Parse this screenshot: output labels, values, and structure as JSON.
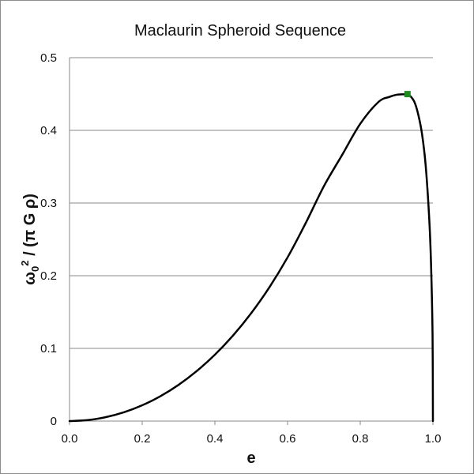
{
  "chart_data": {
    "type": "line",
    "title": "Maclaurin Spheroid Sequence",
    "xlabel": "e",
    "ylabel": {
      "omega": "ω",
      "sub": "0",
      "sup": "2",
      "rest": " / (π G ρ)"
    },
    "xlim": [
      0.0,
      1.0
    ],
    "ylim": [
      0.0,
      0.5
    ],
    "xticks": [
      "0.0",
      "0.2",
      "0.4",
      "0.6",
      "0.8",
      "1.0"
    ],
    "yticks": [
      "0",
      "0.1",
      "0.2",
      "0.3",
      "0.4",
      "0.5"
    ],
    "grid": "horizontal",
    "series": [
      {
        "line_color": "#000000",
        "x": [
          0.0,
          0.05,
          0.1,
          0.15,
          0.2,
          0.25,
          0.3,
          0.35,
          0.4,
          0.45,
          0.5,
          0.55,
          0.6,
          0.65,
          0.7,
          0.75,
          0.8,
          0.85,
          0.88,
          0.9,
          0.92,
          0.93,
          0.94,
          0.95,
          0.96,
          0.97,
          0.98,
          0.99,
          0.995,
          0.999,
          1.0
        ],
        "y": [
          0.0,
          0.0013,
          0.0054,
          0.0121,
          0.0217,
          0.0342,
          0.0498,
          0.0688,
          0.0913,
          0.1177,
          0.1485,
          0.1841,
          0.2252,
          0.2725,
          0.3232,
          0.366,
          0.409,
          0.439,
          0.446,
          0.449,
          0.4496,
          0.4494,
          0.446,
          0.438,
          0.421,
          0.395,
          0.352,
          0.277,
          0.213,
          0.118,
          0.0
        ]
      }
    ],
    "marker": {
      "x": 0.93,
      "y": 0.4499,
      "color": "#1f8a1f"
    }
  }
}
